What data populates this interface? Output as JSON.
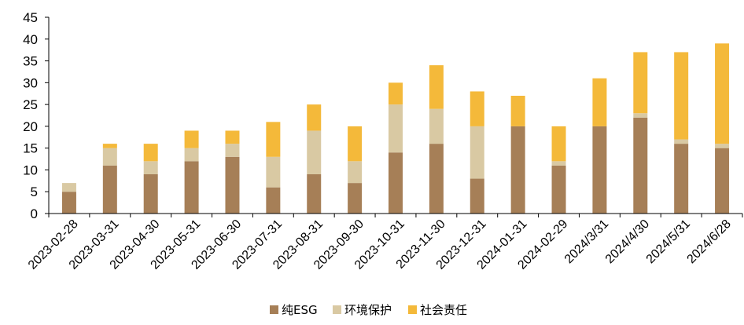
{
  "chart_data": {
    "type": "bar",
    "stacked": true,
    "categories": [
      "2023-02-28",
      "2023-03-31",
      "2023-04-30",
      "2023-05-31",
      "2023-06-30",
      "2023-07-31",
      "2023-08-31",
      "2023-09-30",
      "2023-10-31",
      "2023-11-30",
      "2023-12-31",
      "2024-01-31",
      "2024-02-29",
      "2024/3/31",
      "2024/4/30",
      "2024/5/31",
      "2024/6/28"
    ],
    "series": [
      {
        "name": "纯ESG",
        "color": "#A67F57",
        "values": [
          5,
          11,
          9,
          12,
          13,
          6,
          9,
          7,
          14,
          16,
          8,
          20,
          11,
          20,
          22,
          16,
          15
        ]
      },
      {
        "name": "环境保护",
        "color": "#D9C9A3",
        "values": [
          2,
          4,
          3,
          3,
          3,
          7,
          10,
          5,
          11,
          8,
          12,
          0,
          1,
          0,
          1,
          1,
          1
        ]
      },
      {
        "name": "社会责任",
        "color": "#F4B93A",
        "values": [
          0,
          1,
          4,
          4,
          3,
          8,
          6,
          8,
          5,
          10,
          8,
          7,
          8,
          11,
          14,
          20,
          23
        ]
      }
    ],
    "ylim": [
      0,
      45
    ],
    "yticks": [
      0,
      5,
      10,
      15,
      20,
      25,
      30,
      35,
      40,
      45
    ],
    "legend_position": "bottom",
    "grid": false
  }
}
